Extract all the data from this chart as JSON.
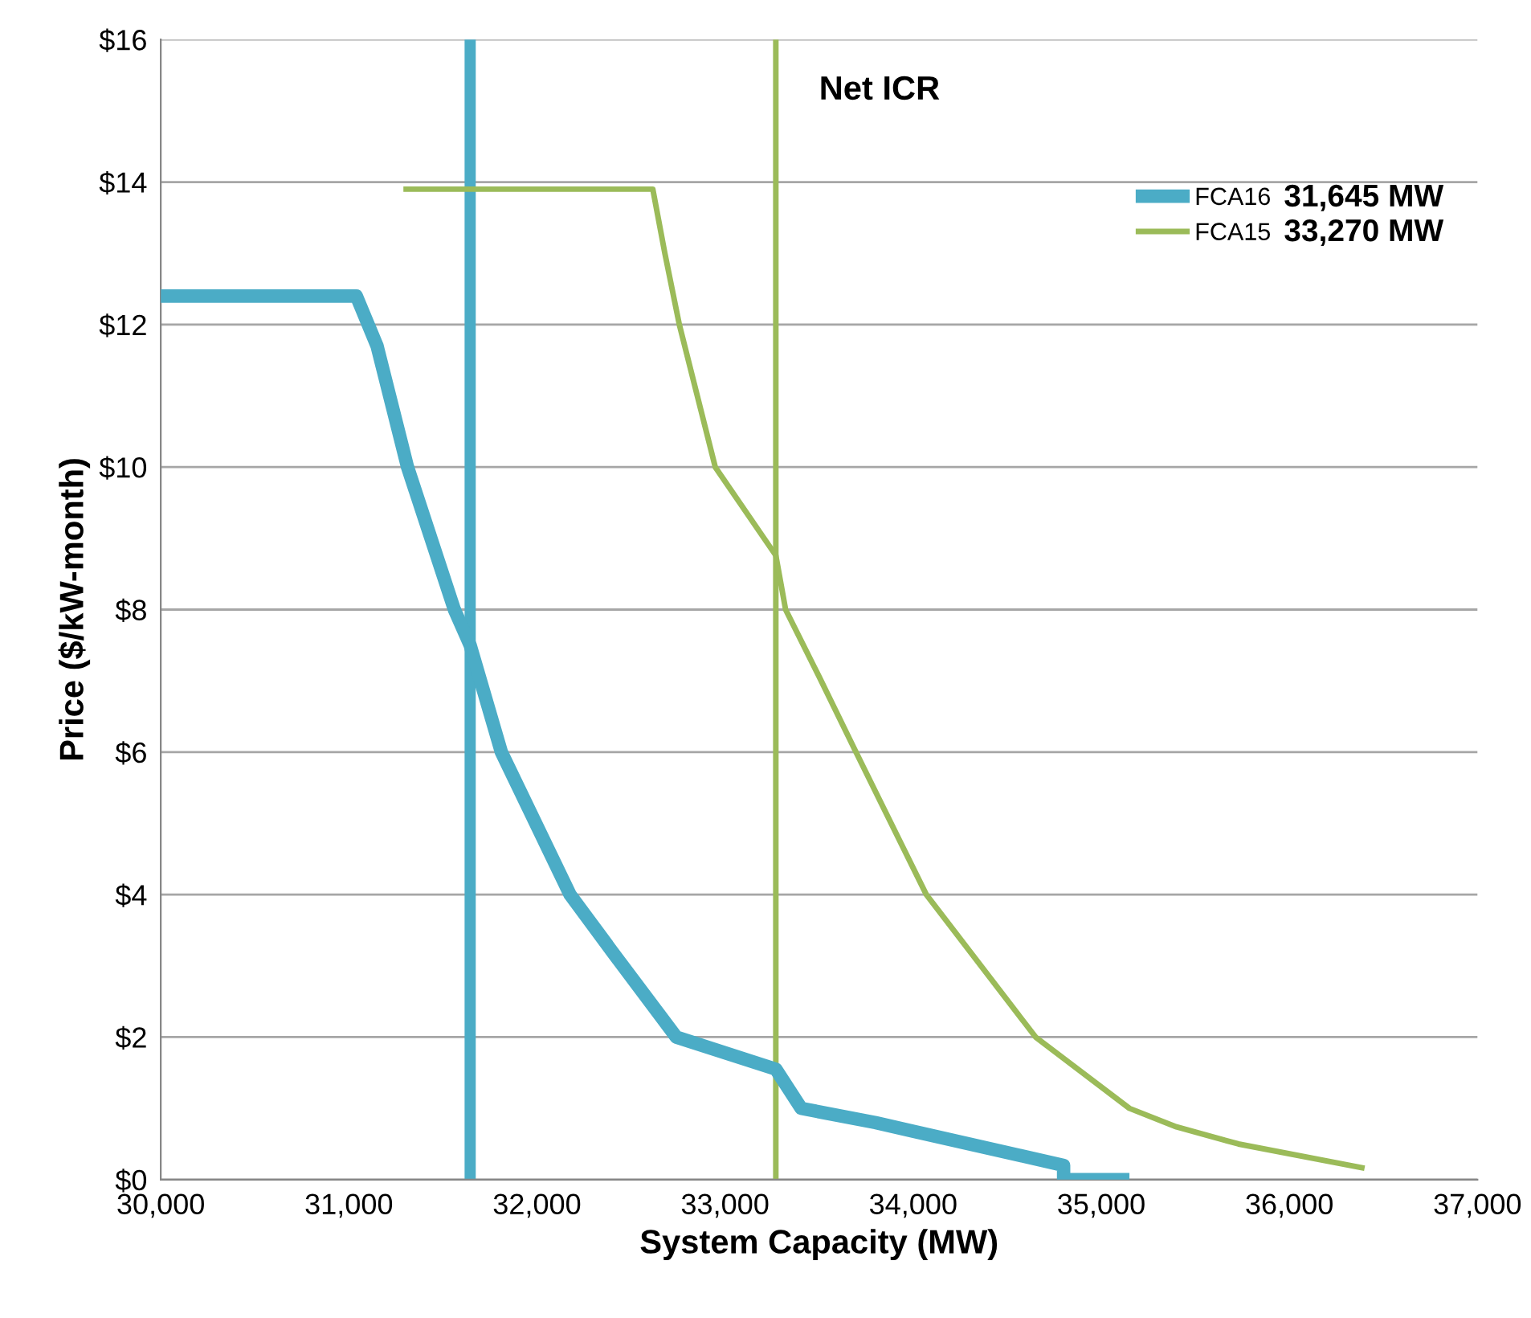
{
  "chart_data": {
    "type": "line",
    "xlabel": "System Capacity (MW)",
    "ylabel": "Price ($/kW-month)",
    "xlim": [
      30000,
      37000
    ],
    "ylim": [
      0,
      16
    ],
    "xticks": [
      {
        "value": 30000,
        "label": "30,000"
      },
      {
        "value": 31000,
        "label": "31,000"
      },
      {
        "value": 32000,
        "label": "32,000"
      },
      {
        "value": 33000,
        "label": "33,000"
      },
      {
        "value": 34000,
        "label": "34,000"
      },
      {
        "value": 35000,
        "label": "35,000"
      },
      {
        "value": 36000,
        "label": "36,000"
      },
      {
        "value": 37000,
        "label": "37,000"
      }
    ],
    "yticks": [
      {
        "value": 0,
        "label": "$0"
      },
      {
        "value": 2,
        "label": "$2"
      },
      {
        "value": 4,
        "label": "$4"
      },
      {
        "value": 6,
        "label": "$6"
      },
      {
        "value": 8,
        "label": "$8"
      },
      {
        "value": 10,
        "label": "$10"
      },
      {
        "value": 12,
        "label": "$12"
      },
      {
        "value": 14,
        "label": "$14"
      },
      {
        "value": 16,
        "label": "$16"
      }
    ],
    "grid": "y",
    "legend": "top right",
    "marker": "none",
    "line_style": "solid",
    "series": [
      {
        "name": "FCA16",
        "color": "#4bacc6",
        "x": [
          30000,
          31040,
          31150,
          31312,
          31561,
          31645,
          31811,
          32176,
          32400,
          32741,
          33270,
          33405,
          33800,
          34000,
          34800,
          34800,
          35150
        ],
        "values": [
          12.4,
          12.4,
          11.7,
          10,
          8,
          7.5,
          6,
          4,
          3.2,
          2,
          1.55,
          1,
          0.8,
          0.68,
          0.2,
          0,
          0
        ]
      },
      {
        "name": "FCA15",
        "color": "#9bbb59",
        "x": [
          31290,
          32616,
          32680,
          32757,
          32948,
          33270,
          33322,
          33500,
          33696,
          34070,
          34651,
          35150,
          35400,
          35730,
          36400
        ],
        "values": [
          13.9,
          13.9,
          13,
          12,
          10,
          8.76,
          8,
          7.06,
          6,
          4,
          2,
          1,
          0.74,
          0.5,
          0.16
        ]
      }
    ],
    "ref_lines": [
      {
        "axis": "x",
        "value": 31645,
        "color": "#4bacc6"
      },
      {
        "axis": "x",
        "value": 33270,
        "color": "#9bbb59"
      }
    ],
    "annotations": [
      "Net ICR",
      "31,645 MW",
      "33,270 MW"
    ]
  }
}
